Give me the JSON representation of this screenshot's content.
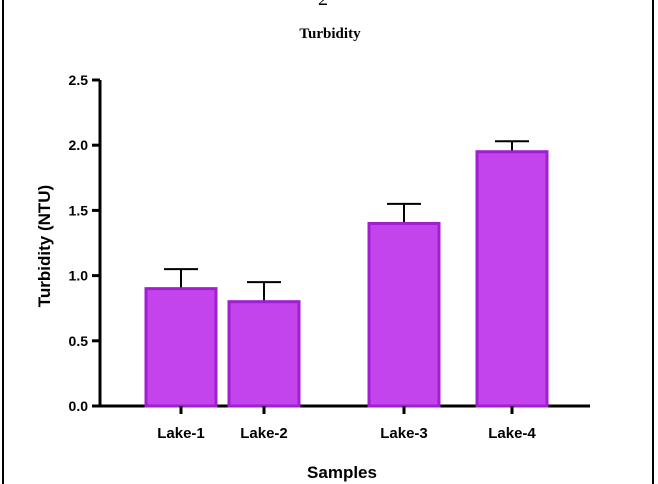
{
  "page_mark": "2",
  "chart_data": {
    "type": "bar",
    "title": "Turbidity",
    "xlabel": "Samples",
    "ylabel": "Turbidity (NTU)",
    "categories": [
      "Lake-1",
      "Lake-2",
      "Lake-3",
      "Lake-4"
    ],
    "values": [
      0.9,
      0.8,
      1.4,
      1.95
    ],
    "error_upper": [
      0.15,
      0.15,
      0.15,
      0.08
    ],
    "ylim": [
      0,
      2.5
    ],
    "yticks": [
      0.0,
      0.5,
      1.0,
      1.5,
      2.0,
      2.5
    ],
    "ytick_labels": [
      "0.0",
      "0.5",
      "1.0",
      "1.5",
      "2.0",
      "2.5"
    ],
    "grid": false,
    "colors": {
      "bar_fill": "#c343ec",
      "bar_stroke": "#a01fd0",
      "axis": "#000000"
    }
  }
}
